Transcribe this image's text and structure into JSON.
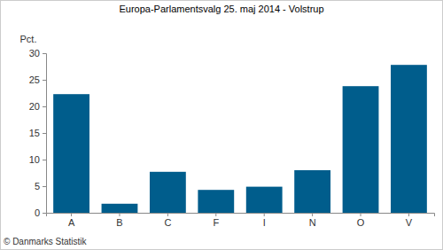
{
  "chart_data": {
    "type": "bar",
    "title": "Europa-Parlamentsvalg 25. maj 2014 - Volstrup",
    "ylabel": "Pct.",
    "source": "© Danmarks Statistik",
    "categories": [
      "A",
      "B",
      "C",
      "F",
      "I",
      "N",
      "O",
      "V"
    ],
    "values": [
      22.3,
      1.7,
      7.7,
      4.3,
      4.9,
      8.0,
      23.8,
      27.8
    ],
    "color": "#005d8c",
    "ylim": [
      0,
      30
    ],
    "yticks": [
      0,
      5,
      10,
      15,
      20,
      25,
      30
    ],
    "grid": false
  }
}
